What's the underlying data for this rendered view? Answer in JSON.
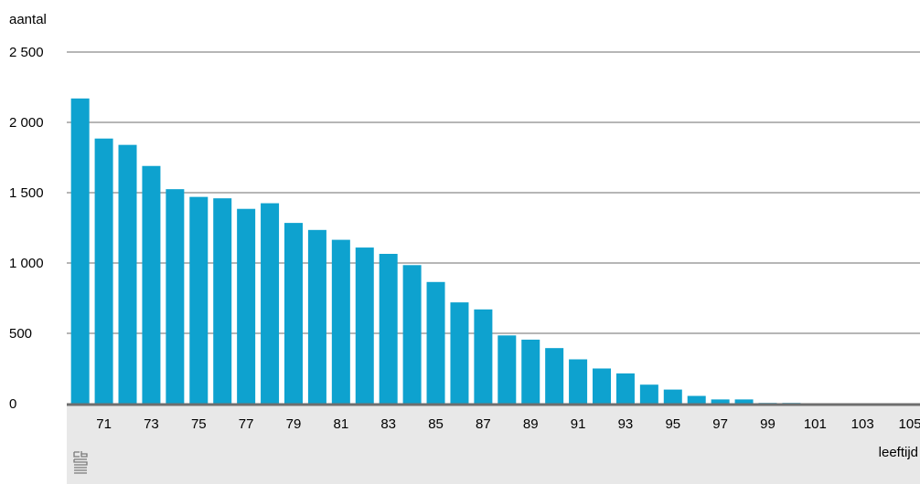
{
  "chart_data": {
    "type": "bar",
    "ylabel": "aantal",
    "xlabel": "leeftijd",
    "ylim": [
      0,
      2500
    ],
    "yticks": [
      0,
      500,
      1000,
      1500,
      2000,
      2500
    ],
    "ytick_labels": [
      "0",
      "500",
      "1 000",
      "1 500",
      "2 000",
      "2 500"
    ],
    "grid": true,
    "bar_color": "#0ea2cf",
    "x": [
      70,
      71,
      72,
      73,
      74,
      75,
      76,
      77,
      78,
      79,
      80,
      81,
      82,
      83,
      84,
      85,
      86,
      87,
      88,
      89,
      90,
      91,
      92,
      93,
      94,
      95,
      96,
      97,
      98,
      99,
      100,
      101,
      102,
      103,
      104,
      105
    ],
    "xtick_labels": [
      "71",
      "73",
      "75",
      "77",
      "79",
      "81",
      "83",
      "85",
      "87",
      "89",
      "91",
      "93",
      "95",
      "97",
      "99",
      "101",
      "103",
      "105"
    ],
    "xtick_values": [
      71,
      73,
      75,
      77,
      79,
      81,
      83,
      85,
      87,
      89,
      91,
      93,
      95,
      97,
      99,
      101,
      103,
      105
    ],
    "values": [
      2170,
      1885,
      1840,
      1690,
      1525,
      1470,
      1460,
      1385,
      1425,
      1285,
      1235,
      1165,
      1110,
      1065,
      985,
      865,
      720,
      670,
      485,
      455,
      395,
      315,
      250,
      215,
      135,
      100,
      55,
      30,
      30,
      5,
      5,
      3,
      3,
      2,
      2,
      2
    ]
  },
  "colors": {
    "bar": "#0ea2cf",
    "band": "#e8e8e8",
    "gridline": "#6e6e6e",
    "baseline": "#6e6e6e"
  },
  "logo": {
    "icon": "cbs-logo-icon"
  }
}
